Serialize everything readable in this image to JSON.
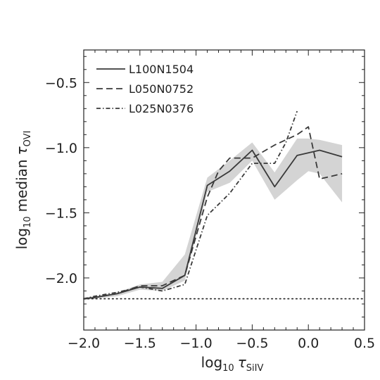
{
  "chart_data": {
    "type": "line",
    "xlabel": {
      "prefix": "log",
      "prefix_sub": "10",
      "symbol": "τ",
      "symbol_sub": "SiIV"
    },
    "ylabel": {
      "prefix": "log",
      "prefix_sub": "10",
      "word": "median",
      "symbol": "τ",
      "symbol_sub": "OVI"
    },
    "xlim": [
      -2.0,
      0.5
    ],
    "ylim": [
      -2.4,
      -0.25
    ],
    "xticks": [
      -2.0,
      -1.5,
      -1.0,
      -0.5,
      0.0,
      0.5
    ],
    "xtick_labels": [
      "−2.0",
      "−1.5",
      "−1.0",
      "−0.5",
      "0.0",
      "0.5"
    ],
    "yticks": [
      -2.0,
      -1.5,
      -1.0,
      -0.5
    ],
    "ytick_labels": [
      "−2.0",
      "−1.5",
      "−1.0",
      "−0.5"
    ],
    "grid": false,
    "legend_position": "top-left",
    "reference_line": {
      "y": -2.16,
      "style": "dotted"
    },
    "band": {
      "x": [
        -2.0,
        -1.9,
        -1.7,
        -1.5,
        -1.3,
        -1.1,
        -0.9,
        -0.7,
        -0.5,
        -0.3,
        -0.1,
        0.0,
        0.1,
        0.3
      ],
      "lower": [
        -2.17,
        -2.16,
        -2.14,
        -2.09,
        -2.1,
        -2.02,
        -1.34,
        -1.27,
        -1.1,
        -1.4,
        -1.25,
        -1.18,
        -1.2,
        -1.42
      ],
      "upper": [
        -2.15,
        -2.14,
        -2.11,
        -2.05,
        -2.03,
        -1.82,
        -1.23,
        -1.1,
        -0.96,
        -1.19,
        -0.93,
        -0.93,
        -0.94,
        -0.98
      ]
    },
    "series": [
      {
        "name": "L100N1504",
        "style": "solid",
        "color": "#3a3a3a",
        "x": [
          -2.0,
          -1.9,
          -1.7,
          -1.5,
          -1.3,
          -1.1,
          -0.9,
          -0.7,
          -0.5,
          -0.3,
          -0.1,
          0.1,
          0.3
        ],
        "values": [
          -2.16,
          -2.15,
          -2.12,
          -2.07,
          -2.08,
          -1.98,
          -1.29,
          -1.18,
          -1.02,
          -1.3,
          -1.06,
          -1.02,
          -1.07
        ]
      },
      {
        "name": "L050N0752",
        "style": "dashed",
        "color": "#3a3a3a",
        "x": [
          -2.0,
          -1.9,
          -1.7,
          -1.5,
          -1.3,
          -1.1,
          -0.9,
          -0.8,
          -0.7,
          -0.5,
          -0.3,
          -0.1,
          0.0,
          0.1,
          0.3
        ],
        "values": [
          -2.16,
          -2.15,
          -2.12,
          -2.06,
          -2.06,
          -1.98,
          -1.38,
          -1.18,
          -1.08,
          -1.08,
          -0.98,
          -0.9,
          -0.84,
          -1.24,
          -1.2
        ]
      },
      {
        "name": "L025N0376",
        "style": "dashdot",
        "color": "#3a3a3a",
        "x": [
          -2.0,
          -1.9,
          -1.7,
          -1.5,
          -1.3,
          -1.1,
          -0.9,
          -0.7,
          -0.5,
          -0.3,
          -0.2,
          -0.1
        ],
        "values": [
          -2.16,
          -2.14,
          -2.11,
          -2.07,
          -2.1,
          -2.05,
          -1.52,
          -1.35,
          -1.12,
          -1.12,
          -0.96,
          -0.72
        ]
      }
    ]
  }
}
